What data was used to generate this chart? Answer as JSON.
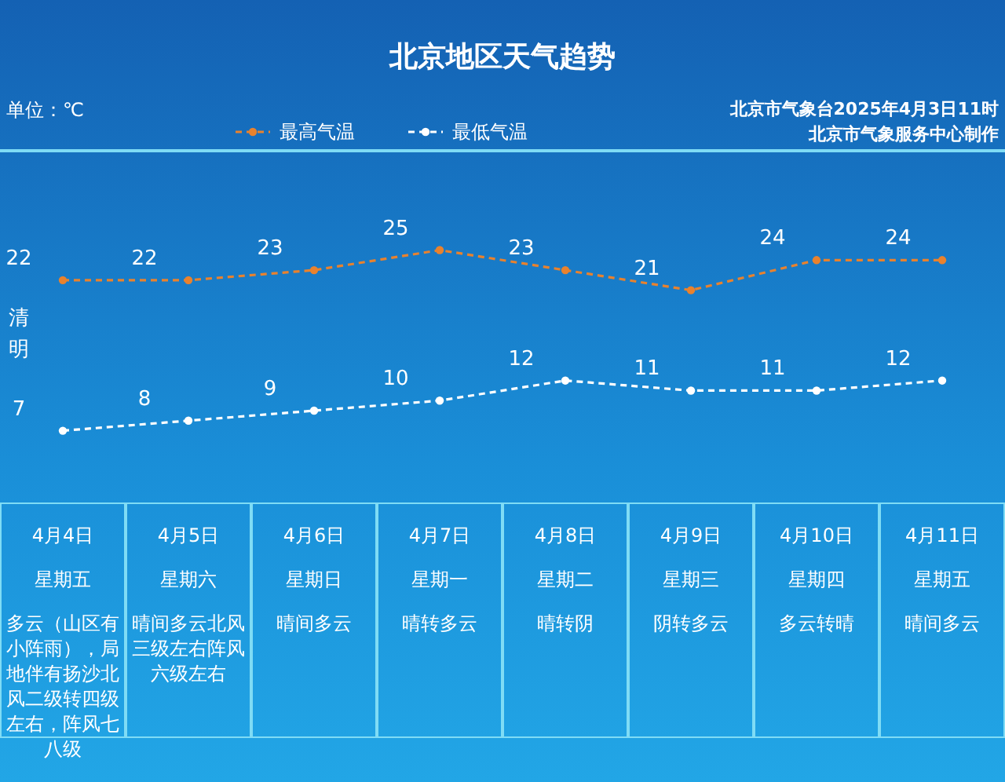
{
  "chart_data": {
    "type": "line",
    "title": "北京地区天气趋势",
    "categories": [
      "4月4日",
      "4月5日",
      "4月6日",
      "4月7日",
      "4月8日",
      "4月9日",
      "4月10日",
      "4月11日"
    ],
    "series": [
      {
        "name": "最高气温",
        "color": "#e8822e",
        "values": [
          22,
          22,
          23,
          25,
          23,
          21,
          24,
          24
        ]
      },
      {
        "name": "最低气温",
        "color": "#ffffff",
        "values": [
          7,
          8,
          9,
          10,
          12,
          11,
          11,
          12
        ]
      }
    ],
    "data_labels": true,
    "legend": "top",
    "marker": "circle",
    "line_style": "dashed",
    "annotations": [
      "单位：℃",
      "北京市气象台2025年4月3日11时",
      "北京市气象服务中心制作",
      "清明",
      "星期五",
      "多云（山区有小阵雨），局地伴有扬沙北风二级转四级左右，阵风七八级",
      "星期六",
      "晴间多云北风三级左右阵风六级左右",
      "星期日",
      "晴间多云",
      "星期一",
      "晴转多云",
      "星期二",
      "晴转阴",
      "星期三",
      "阴转多云",
      "星期四",
      "多云转晴",
      "星期五",
      "晴间多云"
    ]
  }
}
